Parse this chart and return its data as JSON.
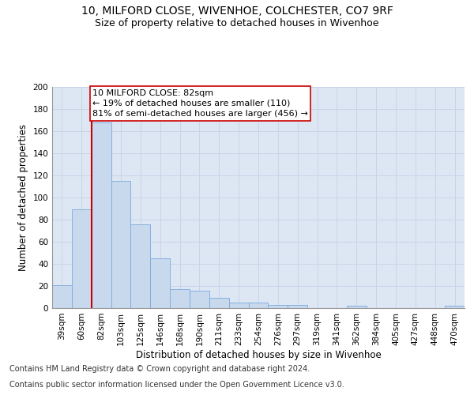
{
  "title_line1": "10, MILFORD CLOSE, WIVENHOE, COLCHESTER, CO7 9RF",
  "title_line2": "Size of property relative to detached houses in Wivenhoe",
  "xlabel": "Distribution of detached houses by size in Wivenhoe",
  "ylabel": "Number of detached properties",
  "categories": [
    "39sqm",
    "60sqm",
    "82sqm",
    "103sqm",
    "125sqm",
    "146sqm",
    "168sqm",
    "190sqm",
    "211sqm",
    "233sqm",
    "254sqm",
    "276sqm",
    "297sqm",
    "319sqm",
    "341sqm",
    "362sqm",
    "384sqm",
    "405sqm",
    "427sqm",
    "448sqm",
    "470sqm"
  ],
  "values": [
    21,
    89,
    168,
    115,
    76,
    45,
    17,
    16,
    9,
    5,
    5,
    3,
    3,
    0,
    0,
    2,
    0,
    0,
    0,
    0,
    2
  ],
  "bar_color": "#c8d9ee",
  "bar_edge_color": "#7aaadc",
  "vline_x_index": 2,
  "vline_color": "#cc0000",
  "annotation_text": "10 MILFORD CLOSE: 82sqm\n← 19% of detached houses are smaller (110)\n81% of semi-detached houses are larger (456) →",
  "annotation_box_color": "#cc0000",
  "ylim": [
    0,
    200
  ],
  "yticks": [
    0,
    20,
    40,
    60,
    80,
    100,
    120,
    140,
    160,
    180,
    200
  ],
  "grid_color": "#c8d4e8",
  "background_color": "#dde6f3",
  "footer_line1": "Contains HM Land Registry data © Crown copyright and database right 2024.",
  "footer_line2": "Contains public sector information licensed under the Open Government Licence v3.0.",
  "title_fontsize": 10,
  "subtitle_fontsize": 9,
  "axis_label_fontsize": 8.5,
  "tick_fontsize": 7.5,
  "annotation_fontsize": 8,
  "footer_fontsize": 7
}
